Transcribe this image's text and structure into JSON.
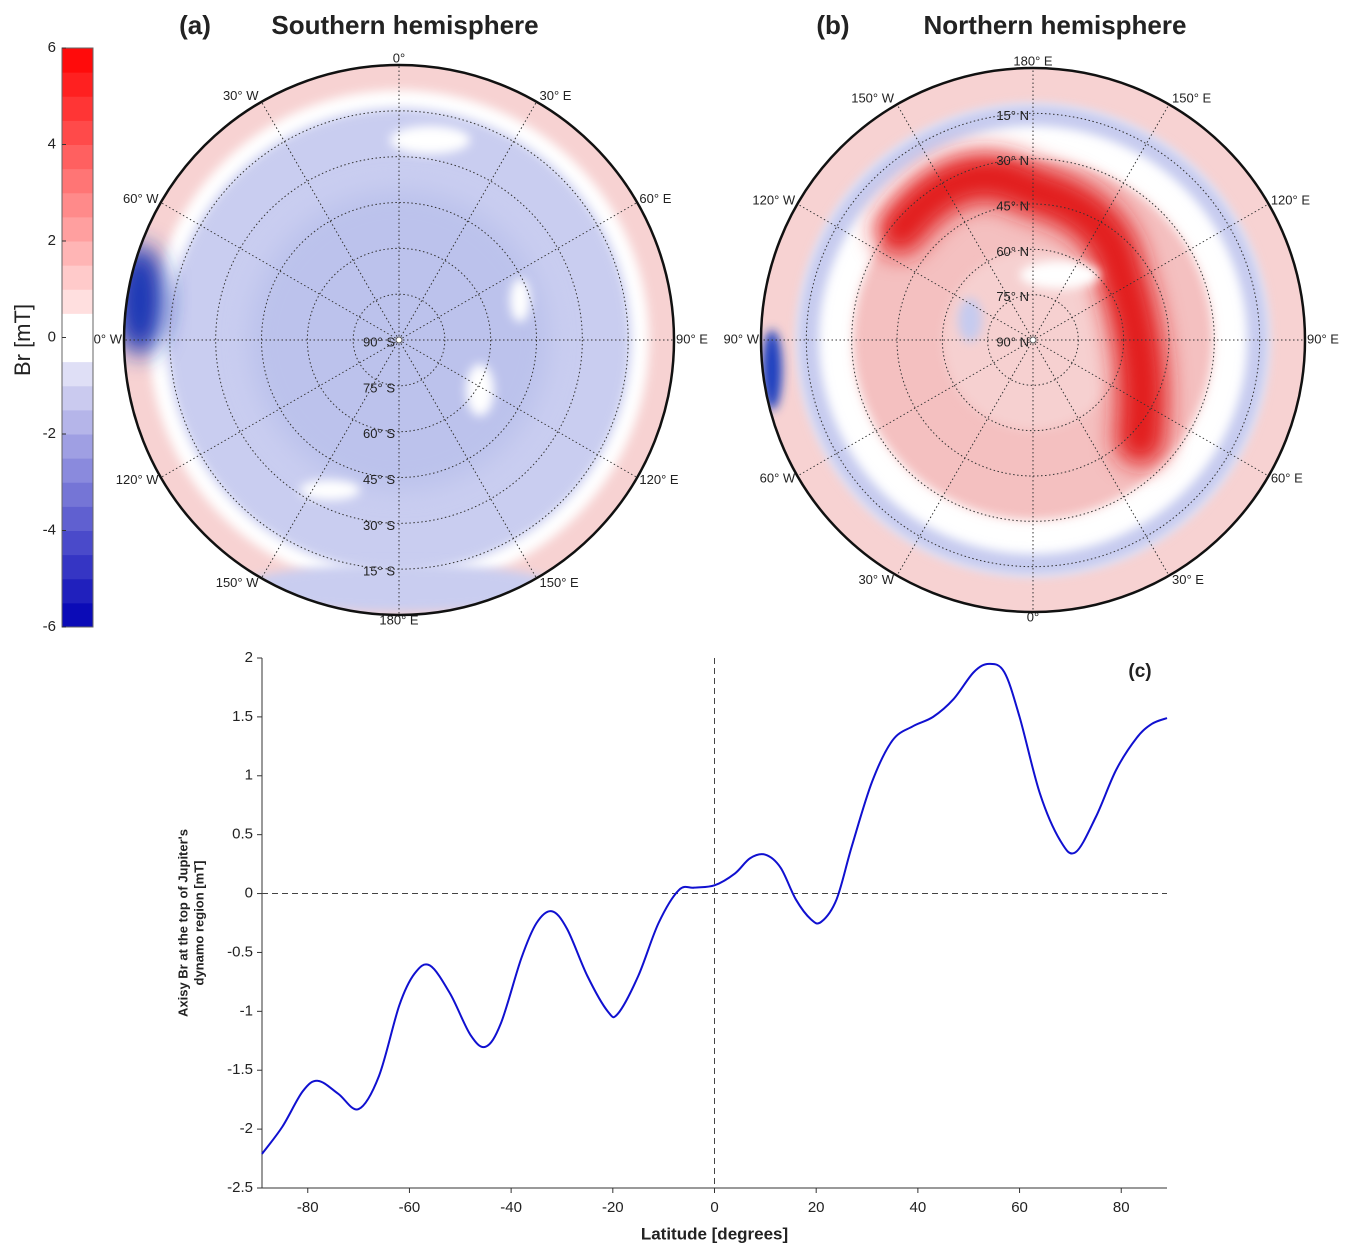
{
  "chart_data": [
    {
      "type": "polar-map",
      "panel": "(a)",
      "title": "Southern hemisphere",
      "lon_labels": [
        "0°",
        "30° E",
        "60° E",
        "90° E",
        "120° E",
        "150° E",
        "180° E",
        "150° W",
        "120° W",
        "90° W",
        "60° W",
        "30° W"
      ],
      "lat_labels": [
        "90° S",
        "75° S",
        "60° S",
        "45° S",
        "30° S",
        "15° S"
      ],
      "colorbar": {
        "label": "Br [mT]",
        "lim": [
          -6,
          6
        ],
        "ticks": [
          -6,
          -4,
          -2,
          0,
          2,
          4,
          6
        ]
      }
    },
    {
      "type": "polar-map",
      "panel": "(b)",
      "title": "Northern hemisphere",
      "lon_labels": [
        "180° E",
        "150° E",
        "120° E",
        "90° E",
        "60° E",
        "30° E",
        "0°",
        "30° W",
        "60° W",
        "90° W",
        "120° W",
        "150° W"
      ],
      "lat_labels": [
        "90° N",
        "75° N",
        "60° N",
        "45° N",
        "30° N",
        "15° N"
      ]
    },
    {
      "type": "line",
      "panel": "(c)",
      "xlabel": "Latitude [degrees]",
      "ylabel": [
        "Axisy Br at the top of Jupiter's",
        "dynamo region [mT]"
      ],
      "xlim": [
        -89,
        89
      ],
      "ylim": [
        -2.5,
        2
      ],
      "xticks": [
        -80,
        -60,
        -40,
        -20,
        0,
        20,
        40,
        60,
        80
      ],
      "yticks": [
        -2.5,
        -2,
        -1.5,
        -1,
        -0.5,
        0,
        0.5,
        1,
        1.5,
        2
      ],
      "reference_lines": {
        "x": 0,
        "y": 0
      },
      "x": [
        -89,
        -85,
        -81,
        -78,
        -74,
        -70,
        -66,
        -62,
        -59,
        -56,
        -52,
        -48,
        -45,
        -42,
        -38,
        -35,
        -32,
        -29,
        -25,
        -21,
        -19,
        -15,
        -11,
        -7,
        -4,
        0,
        4,
        7,
        10,
        13,
        16,
        19,
        21,
        24,
        27,
        31,
        35,
        39,
        43,
        47,
        51,
        54,
        57,
        60,
        64,
        68,
        71,
        75,
        79,
        83,
        86,
        89
      ],
      "series": [
        {
          "color": "#1010d0",
          "values": [
            -2.21,
            -1.98,
            -1.68,
            -1.59,
            -1.7,
            -1.83,
            -1.55,
            -0.95,
            -0.68,
            -0.61,
            -0.85,
            -1.2,
            -1.3,
            -1.1,
            -0.55,
            -0.25,
            -0.15,
            -0.3,
            -0.7,
            -1.0,
            -1.02,
            -0.7,
            -0.25,
            0.03,
            0.05,
            0.07,
            0.17,
            0.3,
            0.33,
            0.22,
            -0.05,
            -0.22,
            -0.24,
            -0.05,
            0.4,
            0.95,
            1.3,
            1.42,
            1.5,
            1.65,
            1.88,
            1.95,
            1.88,
            1.5,
            0.85,
            0.45,
            0.35,
            0.65,
            1.05,
            1.32,
            1.44,
            1.49
          ]
        }
      ]
    }
  ]
}
